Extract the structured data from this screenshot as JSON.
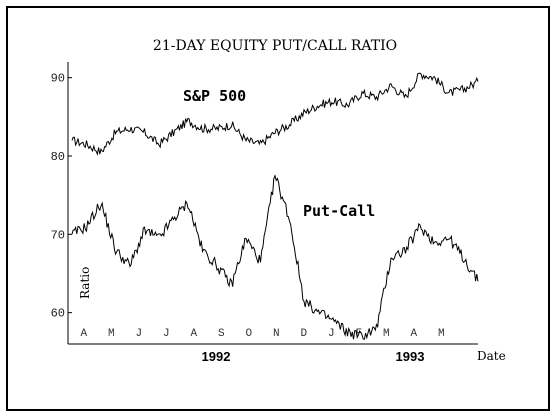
{
  "chart_data": {
    "type": "line",
    "title": "21-DAY EQUITY PUT/CALL RATIO",
    "xlabel": "Date",
    "ylabel": "Ratio",
    "ylim": [
      56,
      92
    ],
    "y_ticks": [
      "60",
      "70",
      "80",
      "90"
    ],
    "x_months": [
      "A",
      "M",
      "J",
      "J",
      "A",
      "S",
      "O",
      "N",
      "D",
      "J",
      "F",
      "M",
      "A",
      "M"
    ],
    "x_years": [
      "1992",
      "1993"
    ],
    "grid": false,
    "series": [
      {
        "name": "S&P 500",
        "x": [
          0,
          0.5,
          1,
          1.5,
          2,
          2.5,
          3,
          3.5,
          4,
          4.5,
          5,
          5.5,
          6,
          6.5,
          7,
          7.5,
          8,
          8.5,
          9,
          9.5,
          10,
          10.5,
          11,
          11.5,
          12,
          12.5,
          13,
          13.5,
          14
        ],
        "values": [
          82,
          81.5,
          80.5,
          83,
          83.5,
          83,
          81.5,
          83,
          84.5,
          83.5,
          83.5,
          84,
          82,
          81.5,
          83,
          84,
          85.5,
          86.5,
          87,
          86.5,
          88,
          87.5,
          89,
          87.5,
          90.5,
          90,
          88,
          88.5,
          89.5
        ]
      },
      {
        "name": "Put-Call",
        "x": [
          0,
          0.5,
          1,
          1.5,
          2,
          2.5,
          3,
          3.5,
          4,
          4.5,
          5,
          5.5,
          6,
          6.5,
          7,
          7.5,
          8,
          8.5,
          9,
          9.5,
          10,
          10.5,
          11,
          11.5,
          12,
          12.5,
          13,
          13.5,
          14
        ],
        "values": [
          70,
          71,
          74,
          68,
          66,
          70.5,
          69.5,
          72,
          74,
          68,
          66,
          63.5,
          69.5,
          66.5,
          77.5,
          72,
          61.5,
          60,
          59,
          57.5,
          57,
          58,
          67,
          68,
          71,
          69,
          69.5,
          67,
          64
        ]
      }
    ]
  }
}
